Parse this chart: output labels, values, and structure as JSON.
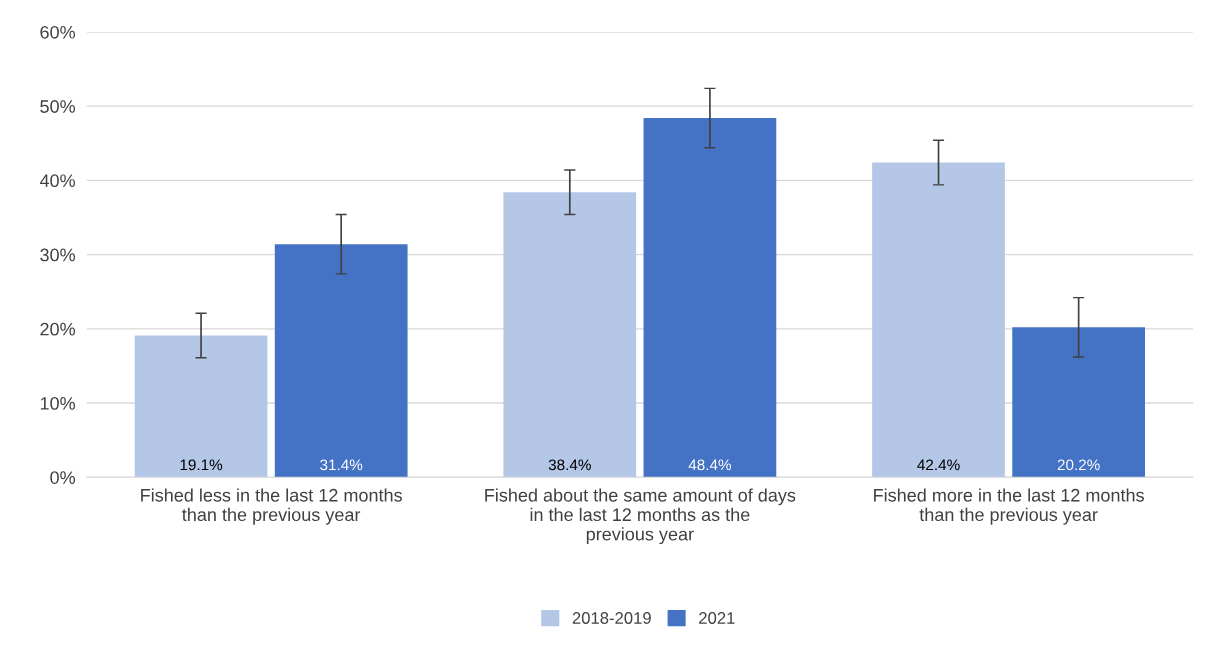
{
  "chart_data": {
    "type": "bar",
    "categories": [
      "Fished less in the last 12 months than the previous year",
      "Fished about the same amount of days in the last 12 months as the previous year",
      "Fished more in the last 12 months than the previous year"
    ],
    "series": [
      {
        "name": "2018-2019",
        "color": "#b4c7e7",
        "values": [
          19.1,
          38.4,
          42.4
        ],
        "errors": [
          3.0,
          3.0,
          3.0
        ],
        "value_labels": [
          "19.1%",
          "38.4%",
          "42.4%"
        ]
      },
      {
        "name": "2021",
        "color": "#4472c4",
        "values": [
          31.4,
          48.4,
          20.2
        ],
        "errors": [
          4.0,
          4.0,
          4.0
        ],
        "value_labels": [
          "31.4%",
          "48.4%",
          "20.2%"
        ]
      }
    ],
    "ylim": [
      0,
      60
    ],
    "yticks": [
      {
        "value": 0,
        "label": "0%"
      },
      {
        "value": 10,
        "label": "10%"
      },
      {
        "value": 20,
        "label": "20%"
      },
      {
        "value": 30,
        "label": "30%"
      },
      {
        "value": 40,
        "label": "40%"
      },
      {
        "value": 50,
        "label": "50%"
      },
      {
        "value": 60,
        "label": "60%"
      }
    ],
    "grid": "y",
    "legend": "bottom"
  }
}
